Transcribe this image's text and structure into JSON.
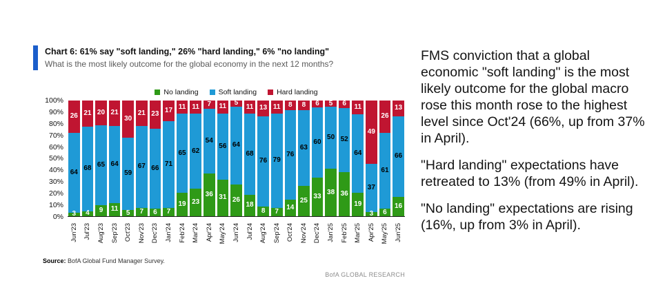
{
  "header": {
    "title": "Chart 6: 61% say \"soft landing,\" 26% \"hard landing,\" 6% \"no landing\"",
    "subtitle": "What is the most likely outcome for the global economy in the next 12 months?",
    "accent_color": "#1b5ecb"
  },
  "chart_data": {
    "type": "bar",
    "stacked": true,
    "normalized_to_100": true,
    "categories": [
      "Jun'23",
      "Jul'23",
      "Aug'23",
      "Sep'23",
      "Oct'23",
      "Nov'23",
      "Dec'23",
      "Jan'24",
      "Feb'24",
      "Mar'24",
      "Apr'24",
      "May'24",
      "Jun'24",
      "Jul'24",
      "Aug'24",
      "Sep'24",
      "Oct'24",
      "Nov'24",
      "Dec'24",
      "Jan'25",
      "Feb'25",
      "Mar'25",
      "Apr'25",
      "May'25",
      "Jun'25"
    ],
    "series": [
      {
        "name": "No landing",
        "color": "#2f9a17",
        "label_color": "#ffffff",
        "values": [
          3,
          4,
          9,
          11,
          5,
          7,
          6,
          7,
          19,
          23,
          36,
          31,
          26,
          18,
          8,
          7,
          14,
          25,
          33,
          38,
          36,
          19,
          3,
          6,
          16
        ]
      },
      {
        "name": "Soft landing",
        "color": "#1f9ad6",
        "label_color": "#000000",
        "values": [
          64,
          68,
          65,
          64,
          59,
          67,
          66,
          71,
          65,
          62,
          54,
          56,
          64,
          68,
          76,
          79,
          76,
          63,
          60,
          50,
          52,
          64,
          37,
          61,
          66
        ]
      },
      {
        "name": "Hard landing",
        "color": "#c01531",
        "label_color": "#ffffff",
        "values": [
          26,
          21,
          20,
          21,
          30,
          21,
          23,
          17,
          11,
          11,
          7,
          11,
          5,
          11,
          13,
          11,
          8,
          8,
          6,
          5,
          6,
          11,
          49,
          26,
          13
        ]
      }
    ],
    "y_ticks": [
      "100%",
      "90%",
      "80%",
      "70%",
      "60%",
      "50%",
      "40%",
      "30%",
      "20%",
      "10%",
      "0%"
    ],
    "ylim": [
      0,
      100
    ],
    "legend_position": "top",
    "grid": false
  },
  "footer": {
    "source_label": "Source:",
    "source_text": " BofA Global Fund Manager Survey.",
    "brand": "BofA GLOBAL RESEARCH"
  },
  "commentary": {
    "paragraphs": [
      "FMS conviction that a global economic \"soft landing\" is the most likely outcome for the global macro rose this month rose to the highest level since Oct'24 (66%, up from 37% in April).",
      "\"Hard landing\" expectations have retreated to 13% (from 49% in April).",
      "\"No landing\" expectations are rising (16%, up from 3% in April)."
    ]
  }
}
